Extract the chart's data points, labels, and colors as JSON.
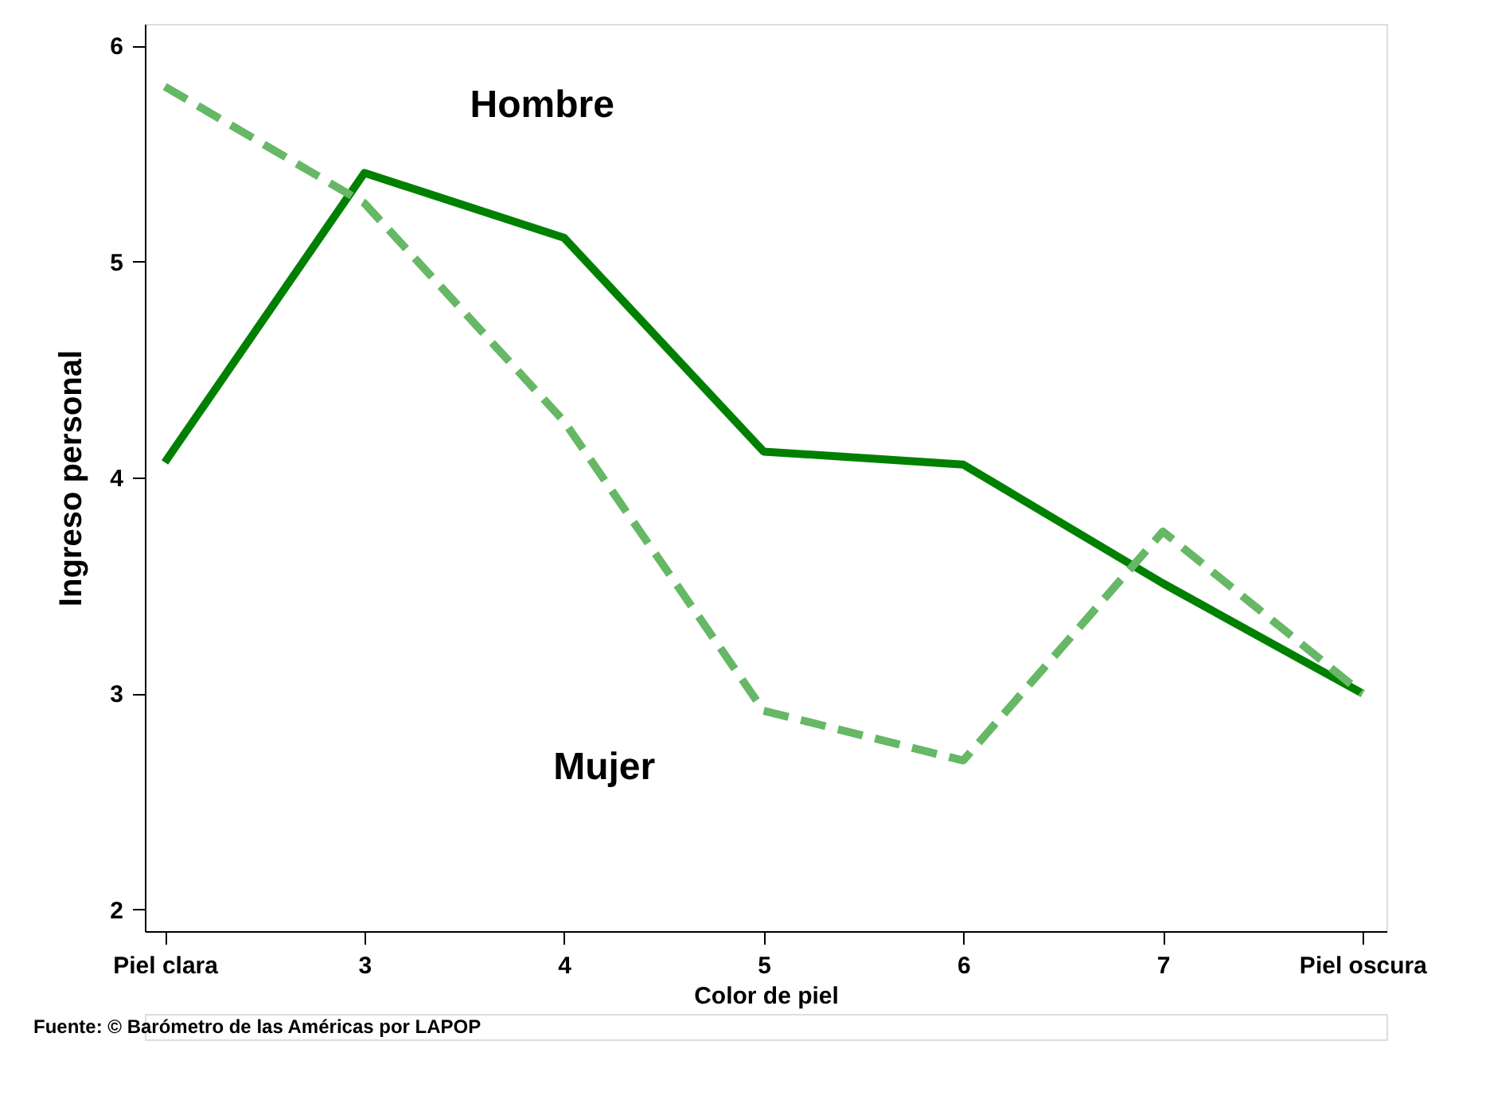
{
  "chart_data": {
    "type": "line",
    "xlabel": "Color de piel",
    "ylabel": "Ingreso personal",
    "categories": [
      "Piel clara",
      "3",
      "4",
      "5",
      "6",
      "7",
      "Piel oscura"
    ],
    "series": [
      {
        "color": "#008000",
        "line_style": "solid",
        "values": [
          4.07,
          5.41,
          5.11,
          4.12,
          4.06,
          3.51,
          3.0
        ]
      },
      {
        "color": "#66b866",
        "line_style": "dashed",
        "values": [
          5.81,
          5.27,
          4.26,
          2.92,
          2.69,
          3.75,
          3.0
        ]
      }
    ],
    "ylim": [
      1.9,
      6.1
    ],
    "yticks": [
      2,
      3,
      4,
      5,
      6
    ],
    "grid": false,
    "marker": "none",
    "annotations": [
      "Hombre",
      "Mujer",
      "Fuente: © Barómetro de las Américas por LAPOP"
    ]
  }
}
